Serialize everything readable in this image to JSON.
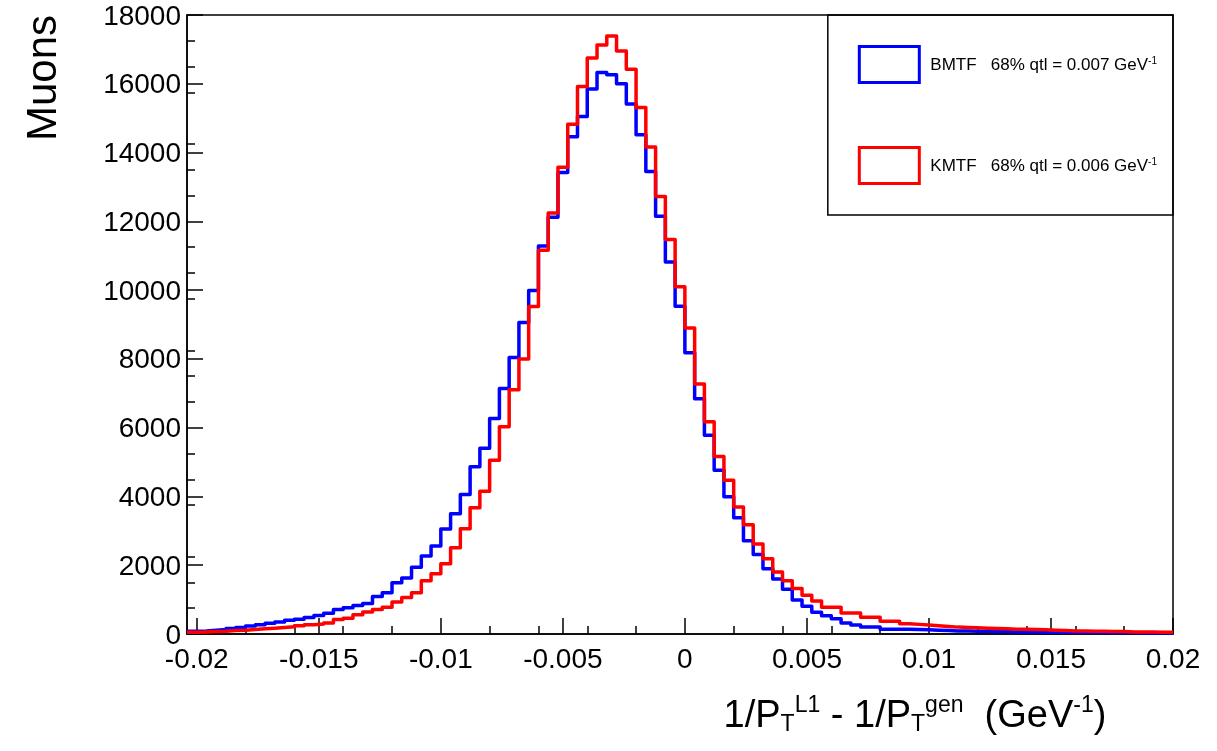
{
  "chart_data": {
    "type": "histogram",
    "xlabel": "1/P$_{T}$$^{L1}$ - 1/P$_{T}$$^{gen}$  (GeV$^{-1}$)",
    "ylabel": "Muons",
    "bins": [
      -0.0204,
      -0.02,
      -0.0196,
      -0.0192,
      -0.0188,
      -0.0184,
      -0.018,
      -0.0176,
      -0.0172,
      -0.0168,
      -0.0164,
      -0.016,
      -0.0156,
      -0.0152,
      -0.0148,
      -0.0144,
      -0.014,
      -0.0136,
      -0.0132,
      -0.0128,
      -0.0124,
      -0.012,
      -0.0116,
      -0.0112,
      -0.0108,
      -0.0104,
      -0.01,
      -0.0096,
      -0.0092,
      -0.0088,
      -0.0084,
      -0.008,
      -0.0076,
      -0.0072,
      -0.0068,
      -0.0064,
      -0.006,
      -0.0056,
      -0.0052,
      -0.0048,
      -0.0044,
      -0.004,
      -0.0036,
      -0.0032,
      -0.0028,
      -0.0024,
      -0.002,
      -0.0016,
      -0.0012,
      -0.0008,
      -0.0004,
      0,
      0.0004,
      0.0008,
      0.0012,
      0.0016,
      0.002,
      0.0024,
      0.0028,
      0.0032,
      0.0036,
      0.004,
      0.0044,
      0.0048,
      0.0052,
      0.0056,
      0.006,
      0.0064,
      0.0068,
      0.0072,
      0.0076,
      0.008,
      0.0084,
      0.0088,
      0.0092,
      0.0096,
      0.01,
      0.0104,
      0.0108,
      0.0112,
      0.0116,
      0.012,
      0.0124,
      0.0128,
      0.0132,
      0.0136,
      0.014,
      0.0144,
      0.0148,
      0.0152,
      0.0156,
      0.016,
      0.0164,
      0.0168,
      0.0172,
      0.0176,
      0.018,
      0.0184,
      0.0188,
      0.0192,
      0.0196,
      0.02
    ],
    "series": [
      {
        "name": "BMTF   68% qtl = 0.007 GeV$^{-1}$",
        "color": "#0000ff",
        "values": [
          80,
          90,
          110,
          130,
          160,
          190,
          230,
          270,
          310,
          350,
          400,
          430,
          480,
          540,
          600,
          710,
          760,
          830,
          890,
          1090,
          1200,
          1490,
          1630,
          1940,
          2270,
          2560,
          3050,
          3500,
          4060,
          4860,
          5400,
          6270,
          7140,
          8040,
          9060,
          9990,
          11280,
          12120,
          13420,
          14460,
          15050,
          15850,
          16330,
          16260,
          16000,
          15410,
          14520,
          13450,
          12150,
          10820,
          9530,
          8180,
          6840,
          5780,
          4760,
          3990,
          3380,
          2710,
          2310,
          1900,
          1600,
          1300,
          990,
          810,
          630,
          530,
          440,
          320,
          260,
          200,
          200,
          140,
          140,
          140,
          130,
          120,
          110,
          100,
          90,
          90,
          80,
          80,
          70,
          70,
          60,
          60,
          60,
          50,
          50,
          50,
          50,
          40,
          40,
          40,
          40,
          40,
          40,
          30,
          30,
          30,
          30
        ]
      },
      {
        "name": "KMTF   68% qtl = 0.006 GeV$^{-1}$",
        "color": "#ff0000",
        "values": [
          50,
          60,
          70,
          80,
          100,
          110,
          130,
          150,
          170,
          190,
          210,
          240,
          270,
          290,
          320,
          420,
          460,
          560,
          640,
          710,
          780,
          930,
          1060,
          1200,
          1550,
          1750,
          2040,
          2510,
          3060,
          3670,
          4150,
          5050,
          6030,
          7100,
          8000,
          9520,
          11160,
          12240,
          13570,
          14820,
          15920,
          16750,
          17130,
          17390,
          16950,
          16420,
          15310,
          14160,
          12720,
          11470,
          10100,
          8900,
          7270,
          6170,
          5160,
          4470,
          3690,
          3180,
          2620,
          2190,
          1800,
          1550,
          1320,
          1130,
          960,
          780,
          780,
          610,
          610,
          490,
          490,
          370,
          370,
          300,
          280,
          260,
          240,
          220,
          200,
          190,
          180,
          170,
          160,
          150,
          140,
          140,
          130,
          120,
          110,
          100,
          90,
          90,
          80,
          80,
          70,
          70,
          60,
          60,
          60,
          50,
          50
        ]
      }
    ],
    "xlim": [
      -0.0204,
      0.02
    ],
    "xticks": [
      -0.02,
      -0.015,
      -0.01,
      -0.005,
      0,
      0.005,
      0.01,
      0.015,
      0.02
    ],
    "ylim": [
      0,
      18000
    ],
    "yticks": [
      0,
      2000,
      4000,
      6000,
      8000,
      10000,
      12000,
      14000,
      16000,
      18000
    ],
    "legend": "top right",
    "grid": false
  }
}
